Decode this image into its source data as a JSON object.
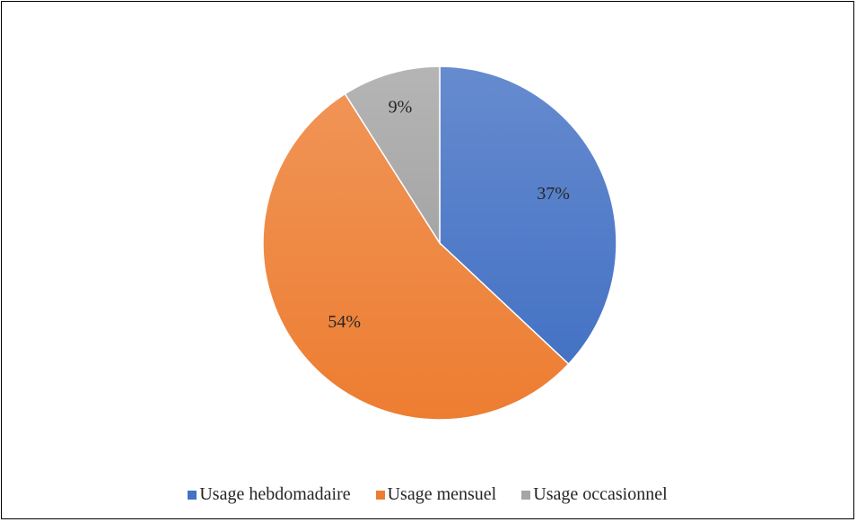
{
  "chart_data": {
    "type": "pie",
    "title": "",
    "categories": [
      "Usage hebdomadaire",
      "Usage mensuel",
      "Usage occasionnel"
    ],
    "values": [
      37,
      54,
      9
    ],
    "unit": "%",
    "data_labels": [
      "37%",
      "54%",
      "9%"
    ],
    "colors": [
      "#4472C4",
      "#ED7D31",
      "#A5A5A5"
    ],
    "start_angle_deg": 0,
    "direction": "clockwise",
    "legend_position": "bottom",
    "gradient_fill": true
  }
}
